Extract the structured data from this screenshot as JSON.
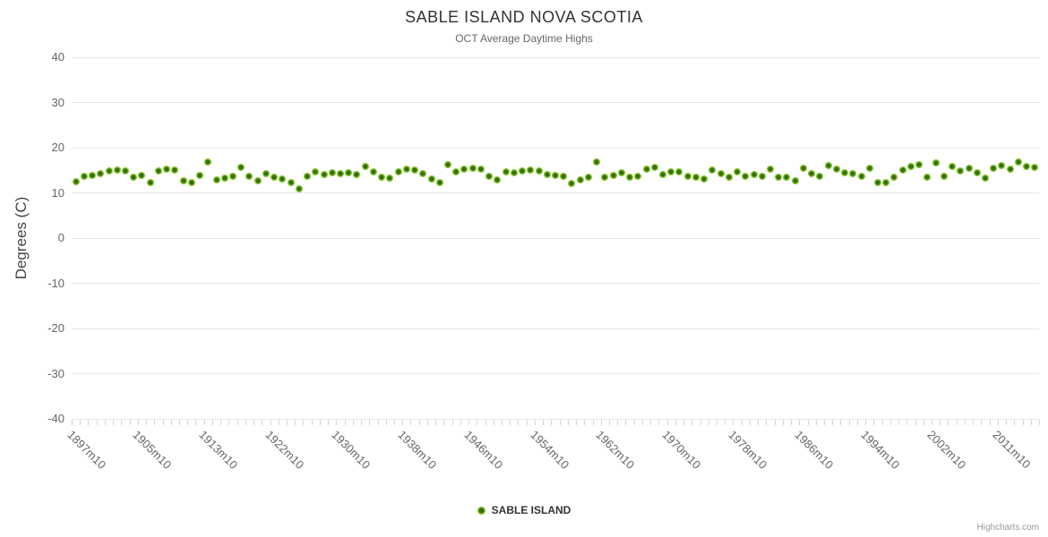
{
  "header": {
    "title": "SABLE ISLAND NOVA SCOTIA",
    "subtitle": "OCT Average Daytime Highs"
  },
  "legend": {
    "label": "SABLE ISLAND"
  },
  "credits": {
    "label": "Highcharts.com"
  },
  "colors": {
    "point_core": "#35700a",
    "point_ring": "#86c52e",
    "grid": "#e6e6e6",
    "tick": "#ccd6eb",
    "axis_line": "#ccd6eb",
    "text_dark": "#333333",
    "text_mid": "#666666"
  },
  "chart_data": {
    "type": "scatter",
    "title": "SABLE ISLAND NOVA SCOTIA",
    "subtitle": "OCT Average Daytime Highs",
    "ylabel": "Degrees (C)",
    "ylim": [
      -40,
      40
    ],
    "ytick_step": 10,
    "grid": true,
    "legend_position": "bottom",
    "xtick_labels": [
      "1897m10",
      "1905m10",
      "1913m10",
      "1922m10",
      "1930m10",
      "1938m10",
      "1946m10",
      "1954m10",
      "1962m10",
      "1970m10",
      "1978m10",
      "1986m10",
      "1994m10",
      "2002m10",
      "2011m10"
    ],
    "xtick_label_indices": [
      0,
      8,
      16,
      24,
      32,
      40,
      48,
      56,
      64,
      72,
      80,
      88,
      96,
      104,
      112
    ],
    "series": [
      {
        "name": "SABLE ISLAND",
        "values": [
          12.4,
          13.7,
          13.9,
          14.2,
          14.8,
          15.0,
          14.9,
          13.5,
          13.9,
          12.2,
          14.9,
          15.2,
          15.0,
          12.6,
          12.3,
          13.8,
          16.8,
          12.9,
          13.2,
          13.7,
          15.7,
          13.6,
          12.6,
          14.2,
          13.4,
          13.1,
          12.2,
          10.9,
          13.7,
          14.6,
          14.1,
          14.4,
          14.2,
          14.4,
          14.1,
          15.9,
          14.6,
          13.4,
          13.2,
          14.7,
          15.2,
          15.0,
          14.2,
          13.1,
          12.2,
          16.3,
          14.7,
          15.2,
          15.4,
          15.3,
          13.7,
          12.9,
          14.7,
          14.5,
          14.9,
          15.0,
          14.9,
          14.1,
          13.9,
          13.6,
          12.1,
          12.9,
          13.4,
          16.9,
          13.4,
          13.9,
          14.4,
          13.4,
          13.7,
          15.2,
          15.6,
          14.1,
          14.6,
          14.7,
          13.7,
          13.4,
          13.0,
          15.0,
          14.2,
          13.5,
          14.7,
          13.7,
          14.1,
          13.7,
          15.2,
          13.4,
          13.5,
          12.7,
          15.5,
          14.2,
          13.7,
          16.0,
          15.2,
          14.4,
          14.2,
          13.7,
          15.5,
          12.2,
          12.2,
          13.4,
          15.0,
          15.9,
          16.2,
          13.5,
          16.6,
          13.7,
          15.9,
          14.9,
          15.4,
          14.4,
          13.3,
          15.5,
          16.1,
          15.3,
          16.9,
          15.9,
          15.7
        ]
      }
    ]
  }
}
